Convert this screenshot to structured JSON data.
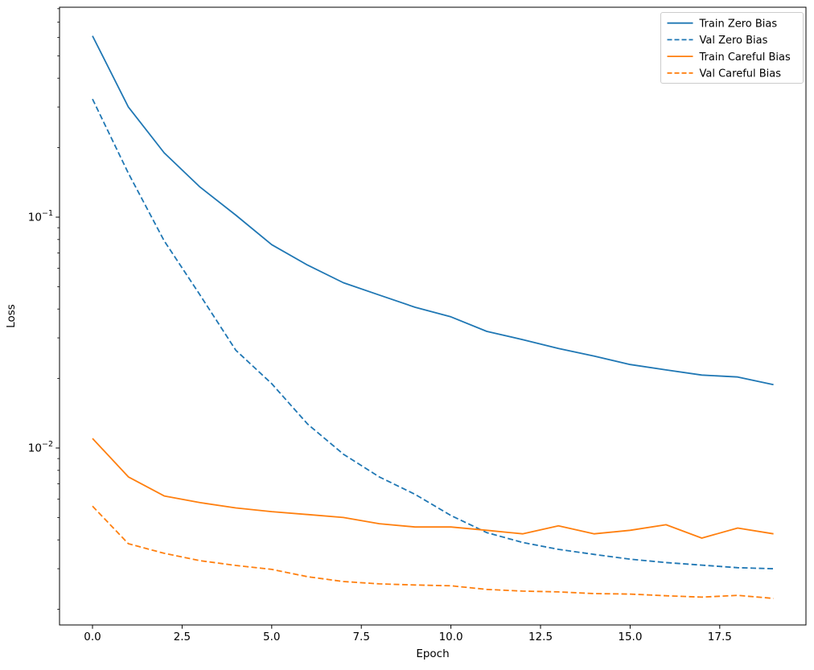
{
  "chart_data": {
    "type": "line",
    "title": "",
    "xlabel": "Epoch",
    "ylabel": "Loss",
    "x": [
      0,
      1,
      2,
      3,
      4,
      5,
      6,
      7,
      8,
      9,
      10,
      11,
      12,
      13,
      14,
      15,
      16,
      17,
      18,
      19
    ],
    "series": [
      {
        "name": "Train Zero Bias",
        "color": "#1f77b4",
        "style": "solid",
        "values": [
          0.61,
          0.3,
          0.19,
          0.135,
          0.102,
          0.076,
          0.062,
          0.052,
          0.046,
          0.0407,
          0.037,
          0.032,
          0.0295,
          0.027,
          0.025,
          0.023,
          0.0218,
          0.0207,
          0.0203,
          0.0188
        ]
      },
      {
        "name": "Val Zero Bias",
        "color": "#1f77b4",
        "style": "dashed",
        "values": [
          0.325,
          0.155,
          0.079,
          0.046,
          0.0265,
          0.019,
          0.0127,
          0.0094,
          0.0075,
          0.0063,
          0.0051,
          0.0043,
          0.0039,
          0.00364,
          0.00346,
          0.0033,
          0.00319,
          0.00311,
          0.00303,
          0.003
        ]
      },
      {
        "name": "Train Careful Bias",
        "color": "#ff7f0e",
        "style": "solid",
        "values": [
          0.011,
          0.0075,
          0.0062,
          0.0058,
          0.0055,
          0.0053,
          0.00515,
          0.005,
          0.0047,
          0.00455,
          0.00455,
          0.0044,
          0.00425,
          0.0046,
          0.00425,
          0.0044,
          0.00465,
          0.00407,
          0.0045,
          0.00425
        ]
      },
      {
        "name": "Val Careful Bias",
        "color": "#ff7f0e",
        "style": "dashed",
        "values": [
          0.0056,
          0.00385,
          0.0035,
          0.00325,
          0.0031,
          0.00298,
          0.00277,
          0.00264,
          0.00258,
          0.00255,
          0.00253,
          0.00244,
          0.0024,
          0.00238,
          0.00234,
          0.00233,
          0.00229,
          0.00226,
          0.0023,
          0.00223
        ]
      }
    ],
    "x_ticks": [
      0.0,
      2.5,
      5.0,
      7.5,
      10.0,
      12.5,
      15.0,
      17.5
    ],
    "x_tick_labels": [
      "0.0",
      "2.5",
      "5.0",
      "7.5",
      "10.0",
      "12.5",
      "15.0",
      "17.5"
    ],
    "y_scale": "log",
    "y_ticks": [
      {
        "value": 0.1,
        "base": "10",
        "exponent": "−1"
      },
      {
        "value": 0.01,
        "base": "10",
        "exponent": "−2"
      }
    ],
    "xlim": [
      -0.95,
      19.95
    ],
    "ylim": [
      0.00171,
      0.818
    ],
    "grid": false,
    "legend_position": "upper right"
  }
}
